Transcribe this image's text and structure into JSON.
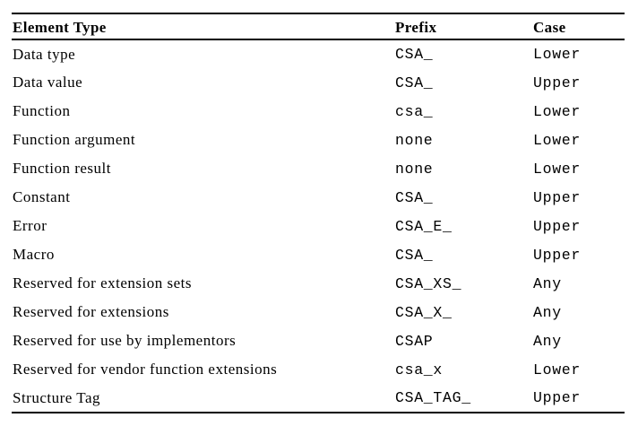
{
  "page": {
    "background": "#ffffff",
    "text_color": "#000000",
    "rule_color": "#000000"
  },
  "table": {
    "columns": [
      {
        "id": "element_type",
        "label": "Element Type"
      },
      {
        "id": "prefix",
        "label": "Prefix"
      },
      {
        "id": "case",
        "label": "Case"
      }
    ],
    "rows": [
      {
        "element_type": "Data type",
        "prefix": "CSA_",
        "case": "Lower"
      },
      {
        "element_type": "Data value",
        "prefix": "CSA_",
        "case": "Upper"
      },
      {
        "element_type": "Function",
        "prefix": "csa_",
        "case": "Lower"
      },
      {
        "element_type": "Function argument",
        "prefix": "none",
        "case": "Lower"
      },
      {
        "element_type": "Function result",
        "prefix": "none",
        "case": "Lower"
      },
      {
        "element_type": "Constant",
        "prefix": "CSA_",
        "case": "Upper"
      },
      {
        "element_type": "Error",
        "prefix": "CSA_E_",
        "case": "Upper"
      },
      {
        "element_type": "Macro",
        "prefix": "CSA_",
        "case": "Upper"
      },
      {
        "element_type": "Reserved for extension sets",
        "prefix": "CSA_XS_",
        "case": "Any"
      },
      {
        "element_type": "Reserved for extensions",
        "prefix": "CSA_X_",
        "case": "Any"
      },
      {
        "element_type": "Reserved for use by implementors",
        "prefix": "CSAP",
        "case": "Any"
      },
      {
        "element_type": "Reserved for vendor function extensions",
        "prefix": "csa_x",
        "case": "Lower"
      },
      {
        "element_type": "Structure Tag",
        "prefix": "CSA_TAG_",
        "case": "Upper"
      }
    ]
  }
}
